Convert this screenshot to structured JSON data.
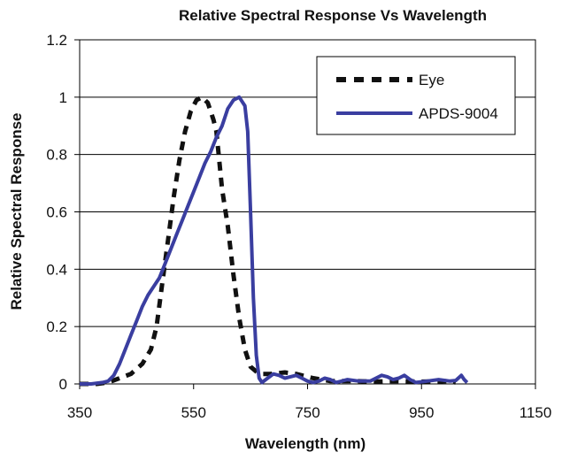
{
  "chart_data": {
    "type": "line",
    "title": "Relative Spectral Response Vs Wavelength",
    "xlabel": "Wavelength (nm)",
    "ylabel": "Relative Spectral Response",
    "xlim": [
      350,
      1150
    ],
    "ylim": [
      0,
      1.2
    ],
    "xticks": [
      350,
      550,
      750,
      950,
      1150
    ],
    "yticks": [
      0,
      0.2,
      0.4,
      0.6,
      0.8,
      1,
      1.2
    ],
    "ytick_labels": [
      "0",
      "0.2",
      "0.4",
      "0.6",
      "0.8",
      "1",
      "1.2"
    ],
    "grid": "horizontal",
    "legend_position": "top-right",
    "series": [
      {
        "name": "Eye",
        "style": "dashed",
        "color": "#111111",
        "points": [
          [
            350,
            0.0
          ],
          [
            380,
            0.0
          ],
          [
            400,
            0.005
          ],
          [
            420,
            0.02
          ],
          [
            440,
            0.035
          ],
          [
            460,
            0.07
          ],
          [
            475,
            0.12
          ],
          [
            485,
            0.2
          ],
          [
            495,
            0.35
          ],
          [
            505,
            0.5
          ],
          [
            515,
            0.65
          ],
          [
            525,
            0.78
          ],
          [
            535,
            0.88
          ],
          [
            545,
            0.95
          ],
          [
            555,
            0.99
          ],
          [
            565,
            1.0
          ],
          [
            575,
            0.98
          ],
          [
            580,
            0.95
          ],
          [
            585,
            0.92
          ],
          [
            590,
            0.88
          ],
          [
            595,
            0.78
          ],
          [
            600,
            0.68
          ],
          [
            610,
            0.55
          ],
          [
            620,
            0.38
          ],
          [
            630,
            0.23
          ],
          [
            640,
            0.12
          ],
          [
            650,
            0.06
          ],
          [
            665,
            0.035
          ],
          [
            685,
            0.035
          ],
          [
            710,
            0.04
          ],
          [
            730,
            0.035
          ],
          [
            760,
            0.02
          ],
          [
            790,
            0.01
          ],
          [
            830,
            0.01
          ],
          [
            870,
            0.008
          ],
          [
            900,
            0.01
          ],
          [
            950,
            0.008
          ],
          [
            1000,
            0.01
          ],
          [
            1010,
            0.005
          ]
        ]
      },
      {
        "name": "APDS-9004",
        "style": "solid",
        "color": "#3a3ea0",
        "points": [
          [
            350,
            0.0
          ],
          [
            370,
            0.0
          ],
          [
            390,
            0.005
          ],
          [
            400,
            0.01
          ],
          [
            410,
            0.03
          ],
          [
            420,
            0.07
          ],
          [
            430,
            0.12
          ],
          [
            440,
            0.17
          ],
          [
            450,
            0.22
          ],
          [
            460,
            0.27
          ],
          [
            470,
            0.31
          ],
          [
            480,
            0.34
          ],
          [
            490,
            0.37
          ],
          [
            500,
            0.42
          ],
          [
            510,
            0.47
          ],
          [
            520,
            0.52
          ],
          [
            530,
            0.57
          ],
          [
            540,
            0.62
          ],
          [
            550,
            0.67
          ],
          [
            560,
            0.72
          ],
          [
            570,
            0.77
          ],
          [
            580,
            0.81
          ],
          [
            590,
            0.86
          ],
          [
            600,
            0.9
          ],
          [
            610,
            0.96
          ],
          [
            620,
            0.99
          ],
          [
            630,
            1.0
          ],
          [
            640,
            0.97
          ],
          [
            645,
            0.88
          ],
          [
            650,
            0.6
          ],
          [
            655,
            0.3
          ],
          [
            660,
            0.1
          ],
          [
            665,
            0.02
          ],
          [
            670,
            0.005
          ],
          [
            680,
            0.02
          ],
          [
            690,
            0.035
          ],
          [
            700,
            0.03
          ],
          [
            710,
            0.02
          ],
          [
            720,
            0.025
          ],
          [
            730,
            0.03
          ],
          [
            740,
            0.02
          ],
          [
            750,
            0.01
          ],
          [
            760,
            0.005
          ],
          [
            770,
            0.01
          ],
          [
            780,
            0.02
          ],
          [
            790,
            0.015
          ],
          [
            800,
            0.005
          ],
          [
            810,
            0.01
          ],
          [
            820,
            0.015
          ],
          [
            840,
            0.01
          ],
          [
            860,
            0.01
          ],
          [
            870,
            0.02
          ],
          [
            880,
            0.03
          ],
          [
            890,
            0.025
          ],
          [
            900,
            0.015
          ],
          [
            910,
            0.02
          ],
          [
            920,
            0.03
          ],
          [
            930,
            0.015
          ],
          [
            940,
            0.005
          ],
          [
            960,
            0.01
          ],
          [
            980,
            0.015
          ],
          [
            1000,
            0.01
          ],
          [
            1010,
            0.012
          ],
          [
            1020,
            0.03
          ],
          [
            1025,
            0.015
          ],
          [
            1030,
            0.005
          ]
        ]
      }
    ]
  }
}
